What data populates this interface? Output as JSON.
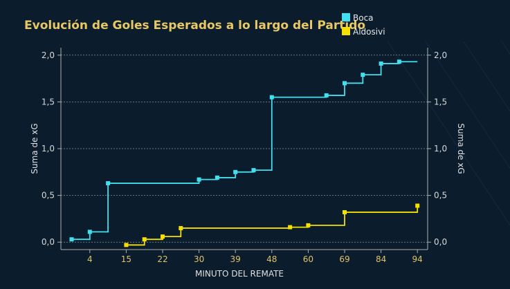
{
  "chart_data": {
    "type": "line",
    "title": "Evolución de Goles Esperados a lo largo del Partido",
    "xlabel": "MINUTO DEL REMATE",
    "ylabel": "Suma de xG",
    "ylabel_right": "Suma de xG",
    "x_tick_labels": [
      "4",
      "15",
      "22",
      "30",
      "39",
      "48",
      "60",
      "69",
      "84",
      "94"
    ],
    "y_ticks": [
      0,
      0.5,
      1,
      1.5,
      2
    ],
    "y_tick_labels": [
      "0,0",
      "0,5",
      "1,0",
      "1,5",
      "2,0"
    ],
    "ylim": [
      -0.05,
      2.05
    ],
    "step": true,
    "grid": true,
    "legend_position": "top-right",
    "series": [
      {
        "name": "Boca",
        "color": "#40e0f0",
        "x_positions": [
          0,
          1,
          2,
          7,
          8,
          9,
          10,
          11,
          14,
          15,
          16,
          17,
          18
        ],
        "values": [
          0.03,
          0.11,
          0.63,
          0.67,
          0.69,
          0.75,
          0.77,
          1.55,
          1.57,
          1.7,
          1.79,
          1.91,
          1.93
        ],
        "end_position": 19
      },
      {
        "name": "Aldosivi",
        "color": "#f5e000",
        "x_positions": [
          3,
          4,
          5,
          6,
          12,
          13,
          15,
          19
        ],
        "values": [
          -0.03,
          0.03,
          0.06,
          0.15,
          0.16,
          0.18,
          0.32,
          0.39
        ]
      }
    ]
  }
}
